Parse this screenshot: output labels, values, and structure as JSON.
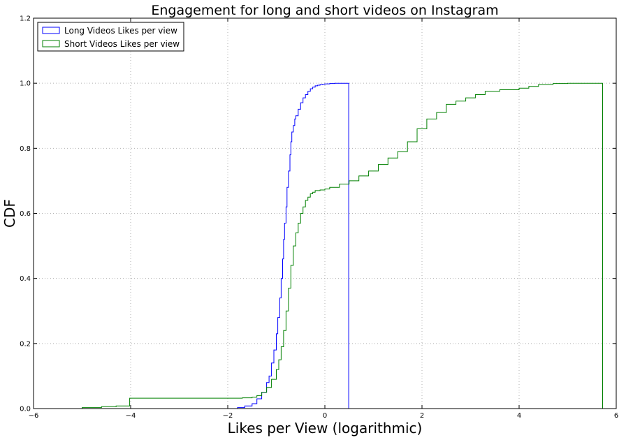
{
  "chart_data": {
    "type": "line",
    "title": "Engagement for long and short videos on Instagram",
    "xlabel": "Likes per View (logarithmic)",
    "ylabel": "CDF",
    "xlim": [
      -6,
      6
    ],
    "ylim": [
      0,
      1.2
    ],
    "xticks": [
      "−6",
      "−4",
      "−2",
      "0",
      "2",
      "4",
      "6"
    ],
    "yticks": [
      "0.0",
      "0.2",
      "0.4",
      "0.6",
      "0.8",
      "1.0",
      "1.2"
    ],
    "grid": true,
    "legend_position": "top-left",
    "series": [
      {
        "name": "Long Videos Likes per view",
        "color": "#0000ff",
        "x": [
          -1.95,
          -1.8,
          -1.65,
          -1.5,
          -1.4,
          -1.3,
          -1.2,
          -1.15,
          -1.1,
          -1.05,
          -1.0,
          -0.97,
          -0.93,
          -0.9,
          -0.87,
          -0.85,
          -0.83,
          -0.8,
          -0.78,
          -0.75,
          -0.72,
          -0.7,
          -0.68,
          -0.65,
          -0.62,
          -0.6,
          -0.55,
          -0.5,
          -0.45,
          -0.4,
          -0.35,
          -0.3,
          -0.25,
          -0.2,
          -0.15,
          -0.1,
          -0.05,
          0.0,
          0.1,
          0.2,
          0.3,
          0.49,
          0.49
        ],
        "y": [
          0.0,
          0.003,
          0.008,
          0.015,
          0.03,
          0.05,
          0.08,
          0.1,
          0.14,
          0.18,
          0.23,
          0.28,
          0.34,
          0.4,
          0.46,
          0.52,
          0.57,
          0.62,
          0.68,
          0.73,
          0.78,
          0.82,
          0.85,
          0.87,
          0.89,
          0.9,
          0.92,
          0.94,
          0.955,
          0.965,
          0.975,
          0.983,
          0.988,
          0.992,
          0.994,
          0.996,
          0.997,
          0.998,
          0.999,
          1.0,
          1.0,
          1.0,
          0.0
        ]
      },
      {
        "name": "Short Videos Likes per view",
        "color": "#008000",
        "x": [
          -5.3,
          -5.0,
          -4.6,
          -4.3,
          -4.02,
          -4.02,
          -2.5,
          -2.0,
          -1.7,
          -1.5,
          -1.4,
          -1.3,
          -1.2,
          -1.1,
          -1.0,
          -0.95,
          -0.9,
          -0.85,
          -0.8,
          -0.75,
          -0.7,
          -0.65,
          -0.6,
          -0.55,
          -0.5,
          -0.45,
          -0.4,
          -0.35,
          -0.3,
          -0.25,
          -0.2,
          -0.1,
          0.0,
          0.1,
          0.3,
          0.5,
          0.7,
          0.9,
          1.1,
          1.3,
          1.5,
          1.7,
          1.9,
          2.1,
          2.3,
          2.5,
          2.7,
          2.9,
          3.1,
          3.3,
          3.6,
          4.0,
          4.2,
          4.4,
          4.7,
          5.0,
          5.5,
          5.72,
          5.72
        ],
        "y": [
          0.0,
          0.003,
          0.006,
          0.008,
          0.01,
          0.032,
          0.032,
          0.032,
          0.033,
          0.035,
          0.04,
          0.05,
          0.065,
          0.09,
          0.12,
          0.15,
          0.19,
          0.24,
          0.3,
          0.37,
          0.44,
          0.5,
          0.54,
          0.57,
          0.6,
          0.62,
          0.64,
          0.65,
          0.66,
          0.665,
          0.67,
          0.672,
          0.675,
          0.68,
          0.69,
          0.7,
          0.715,
          0.73,
          0.75,
          0.77,
          0.79,
          0.82,
          0.86,
          0.89,
          0.91,
          0.935,
          0.945,
          0.955,
          0.965,
          0.975,
          0.98,
          0.985,
          0.99,
          0.996,
          0.999,
          1.0,
          1.0,
          1.0,
          0.0
        ]
      }
    ]
  }
}
